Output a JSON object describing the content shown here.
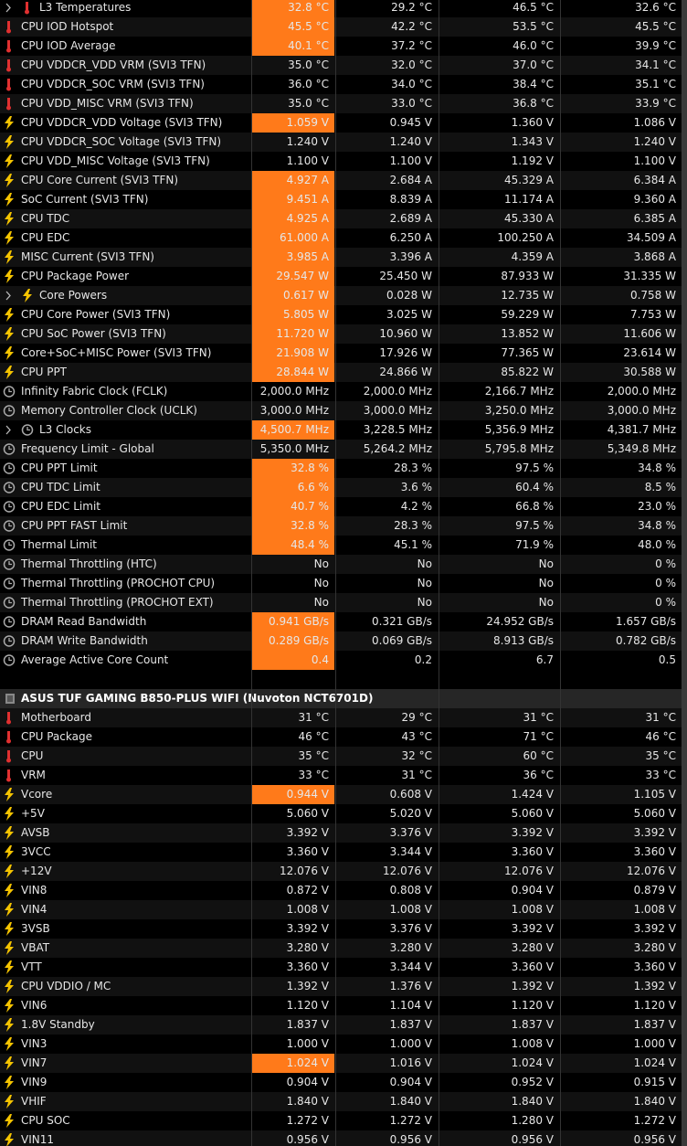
{
  "sections": [
    {
      "rows": [
        {
          "label": "L3 Temperatures",
          "values": [
            "32.8 °C",
            "29.2 °C",
            "46.5 °C",
            "32.6 °C"
          ],
          "highlight": true
        },
        {
          "label": "CPU IOD Hotspot",
          "values": [
            "45.5 °C",
            "42.2 °C",
            "53.5 °C",
            "45.5 °C"
          ],
          "highlight": true
        },
        {
          "label": "CPU IOD Average",
          "values": [
            "40.1 °C",
            "37.2 °C",
            "46.0 °C",
            "39.9 °C"
          ],
          "highlight": true
        },
        {
          "label": "CPU VDDCR_VDD VRM (SVI3 TFN)",
          "values": [
            "35.0 °C",
            "32.0 °C",
            "37.0 °C",
            "34.1 °C"
          ],
          "highlight": false
        },
        {
          "label": "CPU VDDCR_SOC VRM (SVI3 TFN)",
          "values": [
            "36.0 °C",
            "34.0 °C",
            "38.4 °C",
            "35.1 °C"
          ],
          "highlight": false
        },
        {
          "label": "CPU VDD_MISC VRM (SVI3 TFN)",
          "values": [
            "35.0 °C",
            "33.0 °C",
            "36.8 °C",
            "33.9 °C"
          ],
          "highlight": false
        },
        {
          "label": "CPU VDDCR_VDD Voltage (SVI3 TFN)",
          "values": [
            "1.059 V",
            "0.945 V",
            "1.360 V",
            "1.086 V"
          ],
          "highlight": true
        },
        {
          "label": "CPU VDDCR_SOC Voltage (SVI3 TFN)",
          "values": [
            "1.240 V",
            "1.240 V",
            "1.343 V",
            "1.240 V"
          ],
          "highlight": false
        },
        {
          "label": "CPU VDD_MISC Voltage (SVI3 TFN)",
          "values": [
            "1.100 V",
            "1.100 V",
            "1.192 V",
            "1.100 V"
          ],
          "highlight": false
        },
        {
          "label": "CPU Core Current (SVI3 TFN)",
          "values": [
            "4.927 A",
            "2.684 A",
            "45.329 A",
            "6.384 A"
          ],
          "highlight": true
        },
        {
          "label": "SoC Current (SVI3 TFN)",
          "values": [
            "9.451 A",
            "8.839 A",
            "11.174 A",
            "9.360 A"
          ],
          "highlight": true
        },
        {
          "label": "CPU TDC",
          "values": [
            "4.925 A",
            "2.689 A",
            "45.330 A",
            "6.385 A"
          ],
          "highlight": true
        },
        {
          "label": "CPU EDC",
          "values": [
            "61.000 A",
            "6.250 A",
            "100.250 A",
            "34.509 A"
          ],
          "highlight": true
        },
        {
          "label": "MISC Current (SVI3 TFN)",
          "values": [
            "3.985 A",
            "3.396 A",
            "4.359 A",
            "3.868 A"
          ],
          "highlight": true
        },
        {
          "label": "CPU Package Power",
          "values": [
            "29.547 W",
            "25.450 W",
            "87.933 W",
            "31.335 W"
          ],
          "highlight": true
        },
        {
          "label": "Core Powers",
          "values": [
            "0.617 W",
            "0.028 W",
            "12.735 W",
            "0.758 W"
          ],
          "highlight": true
        },
        {
          "label": "CPU Core Power (SVI3 TFN)",
          "values": [
            "5.805 W",
            "3.025 W",
            "59.229 W",
            "7.753 W"
          ],
          "highlight": true
        },
        {
          "label": "CPU SoC Power (SVI3 TFN)",
          "values": [
            "11.720 W",
            "10.960 W",
            "13.852 W",
            "11.606 W"
          ],
          "highlight": true
        },
        {
          "label": "Core+SoC+MISC Power (SVI3 TFN)",
          "values": [
            "21.908 W",
            "17.926 W",
            "77.365 W",
            "23.614 W"
          ],
          "highlight": true
        },
        {
          "label": "CPU PPT",
          "values": [
            "28.844 W",
            "24.866 W",
            "85.822 W",
            "30.588 W"
          ],
          "highlight": true
        },
        {
          "label": "Infinity Fabric Clock (FCLK)",
          "values": [
            "2,000.0 MHz",
            "2,000.0 MHz",
            "2,166.7 MHz",
            "2,000.0 MHz"
          ],
          "highlight": false
        },
        {
          "label": "Memory Controller Clock (UCLK)",
          "values": [
            "3,000.0 MHz",
            "3,000.0 MHz",
            "3,250.0 MHz",
            "3,000.0 MHz"
          ],
          "highlight": false
        },
        {
          "label": "L3 Clocks",
          "values": [
            "4,500.7 MHz",
            "3,228.5 MHz",
            "5,356.9 MHz",
            "4,381.7 MHz"
          ],
          "highlight": true
        },
        {
          "label": "Frequency Limit - Global",
          "values": [
            "5,350.0 MHz",
            "5,264.2 MHz",
            "5,795.8 MHz",
            "5,349.8 MHz"
          ],
          "highlight": false
        },
        {
          "label": "CPU PPT Limit",
          "values": [
            "32.8 %",
            "28.3 %",
            "97.5 %",
            "34.8 %"
          ],
          "highlight": true
        },
        {
          "label": "CPU TDC Limit",
          "values": [
            "6.6 %",
            "3.6 %",
            "60.4 %",
            "8.5 %"
          ],
          "highlight": true
        },
        {
          "label": "CPU EDC Limit",
          "values": [
            "40.7 %",
            "4.2 %",
            "66.8 %",
            "23.0 %"
          ],
          "highlight": true
        },
        {
          "label": "CPU PPT FAST Limit",
          "values": [
            "32.8 %",
            "28.3 %",
            "97.5 %",
            "34.8 %"
          ],
          "highlight": true
        },
        {
          "label": "Thermal Limit",
          "values": [
            "48.4 %",
            "45.1 %",
            "71.9 %",
            "48.0 %"
          ],
          "highlight": true
        },
        {
          "label": "Thermal Throttling (HTC)",
          "values": [
            "No",
            "No",
            "No",
            "0 %"
          ],
          "highlight": false
        },
        {
          "label": "Thermal Throttling (PROCHOT CPU)",
          "values": [
            "No",
            "No",
            "No",
            "0 %"
          ],
          "highlight": false
        },
        {
          "label": "Thermal Throttling (PROCHOT EXT)",
          "values": [
            "No",
            "No",
            "No",
            "0 %"
          ],
          "highlight": false
        },
        {
          "label": "DRAM Read Bandwidth",
          "values": [
            "0.941 GB/s",
            "0.321 GB/s",
            "24.952 GB/s",
            "1.657 GB/s"
          ],
          "highlight": true
        },
        {
          "label": "DRAM Write Bandwidth",
          "values": [
            "0.289 GB/s",
            "0.069 GB/s",
            "8.913 GB/s",
            "0.782 GB/s"
          ],
          "highlight": true
        },
        {
          "label": "Average Active Core Count",
          "values": [
            "0.4",
            "0.2",
            "6.7",
            "0.5"
          ],
          "highlight": true
        }
      ]
    },
    {
      "title": "ASUS TUF GAMING B850-PLUS WIFI (Nuvoton NCT6701D)",
      "rows": [
        {
          "label": "Motherboard",
          "values": [
            "31 °C",
            "29 °C",
            "31 °C",
            "31 °C"
          ],
          "highlight": false
        },
        {
          "label": "CPU Package",
          "values": [
            "46 °C",
            "43 °C",
            "71 °C",
            "46 °C"
          ],
          "highlight": false
        },
        {
          "label": "CPU",
          "values": [
            "35 °C",
            "32 °C",
            "60 °C",
            "35 °C"
          ],
          "highlight": false
        },
        {
          "label": "VRM",
          "values": [
            "33 °C",
            "31 °C",
            "36 °C",
            "33 °C"
          ],
          "highlight": false
        },
        {
          "label": "Vcore",
          "values": [
            "0.944 V",
            "0.608 V",
            "1.424 V",
            "1.105 V"
          ],
          "highlight": true
        },
        {
          "label": "+5V",
          "values": [
            "5.060 V",
            "5.020 V",
            "5.060 V",
            "5.060 V"
          ],
          "highlight": false
        },
        {
          "label": "AVSB",
          "values": [
            "3.392 V",
            "3.376 V",
            "3.392 V",
            "3.392 V"
          ],
          "highlight": false
        },
        {
          "label": "3VCC",
          "values": [
            "3.360 V",
            "3.344 V",
            "3.360 V",
            "3.360 V"
          ],
          "highlight": false
        },
        {
          "label": "+12V",
          "values": [
            "12.076 V",
            "12.076 V",
            "12.076 V",
            "12.076 V"
          ],
          "highlight": false
        },
        {
          "label": "VIN8",
          "values": [
            "0.872 V",
            "0.808 V",
            "0.904 V",
            "0.879 V"
          ],
          "highlight": false
        },
        {
          "label": "VIN4",
          "values": [
            "1.008 V",
            "1.008 V",
            "1.008 V",
            "1.008 V"
          ],
          "highlight": false
        },
        {
          "label": "3VSB",
          "values": [
            "3.392 V",
            "3.376 V",
            "3.392 V",
            "3.392 V"
          ],
          "highlight": false
        },
        {
          "label": "VBAT",
          "values": [
            "3.280 V",
            "3.280 V",
            "3.280 V",
            "3.280 V"
          ],
          "highlight": false
        },
        {
          "label": "VTT",
          "values": [
            "3.360 V",
            "3.344 V",
            "3.360 V",
            "3.360 V"
          ],
          "highlight": false
        },
        {
          "label": "CPU VDDIO / MC",
          "values": [
            "1.392 V",
            "1.376 V",
            "1.392 V",
            "1.392 V"
          ],
          "highlight": false
        },
        {
          "label": "VIN6",
          "values": [
            "1.120 V",
            "1.104 V",
            "1.120 V",
            "1.120 V"
          ],
          "highlight": false
        },
        {
          "label": "1.8V Standby",
          "values": [
            "1.837 V",
            "1.837 V",
            "1.837 V",
            "1.837 V"
          ],
          "highlight": false
        },
        {
          "label": "VIN3",
          "values": [
            "1.000 V",
            "1.000 V",
            "1.008 V",
            "1.000 V"
          ],
          "highlight": false
        },
        {
          "label": "VIN7",
          "values": [
            "1.024 V",
            "1.016 V",
            "1.024 V",
            "1.024 V"
          ],
          "highlight": true
        },
        {
          "label": "VIN9",
          "values": [
            "0.904 V",
            "0.904 V",
            "0.952 V",
            "0.915 V"
          ],
          "highlight": false
        },
        {
          "label": "VHIF",
          "values": [
            "1.840 V",
            "1.840 V",
            "1.840 V",
            "1.840 V"
          ],
          "highlight": false
        },
        {
          "label": "CPU SOC",
          "values": [
            "1.272 V",
            "1.272 V",
            "1.280 V",
            "1.272 V"
          ],
          "highlight": false
        },
        {
          "label": "VIN11",
          "values": [
            "0.956 V",
            "0.956 V",
            "0.956 V",
            "0.956 V"
          ],
          "highlight": false
        }
      ]
    }
  ]
}
